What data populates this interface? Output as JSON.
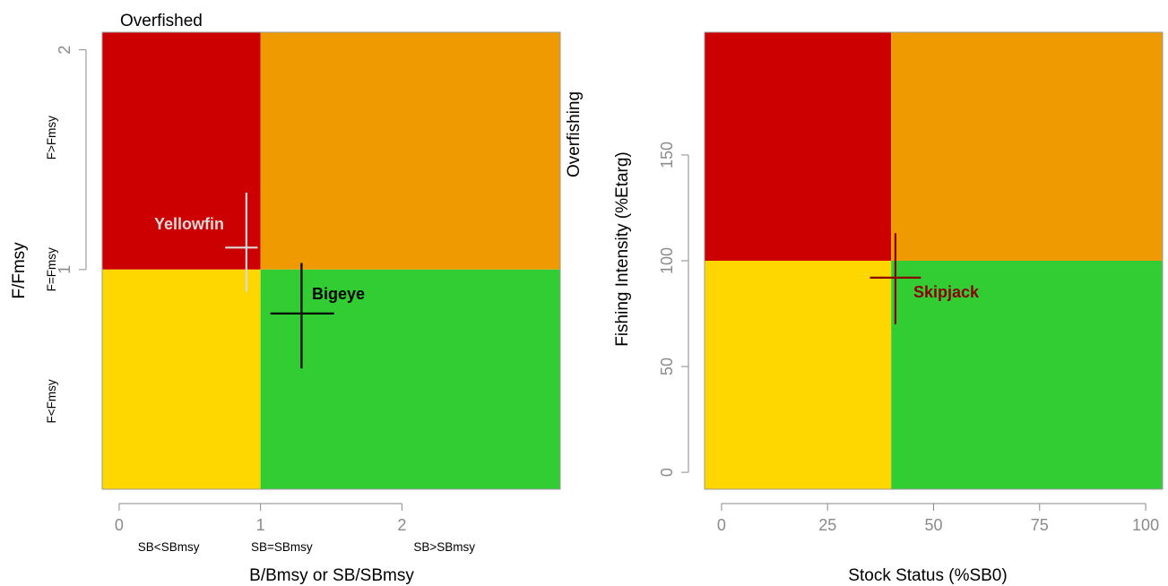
{
  "colors": {
    "red": "#CC0000",
    "orange": "#EE9A00",
    "yellow": "#FFD700",
    "green": "#32CD32",
    "axis": "#8a8a8a"
  },
  "chart_data": [
    {
      "type": "kobe-plot",
      "title": "Overfished",
      "xlabel": "B/Bmsy or SB/SBmsy",
      "ylabel": "F/Fmsy",
      "xlim": [
        -0.12,
        3.12
      ],
      "ylim": [
        0,
        2.08
      ],
      "x_ticks": [
        "0",
        "1",
        "2"
      ],
      "y_ticks": [
        "1",
        "2"
      ],
      "x_category_labels": [
        {
          "text": "SB<SBmsy",
          "x": 0.35
        },
        {
          "text": "SB=SBmsy",
          "x": 1.15
        },
        {
          "text": "SB>SBmsy",
          "x": 2.3
        }
      ],
      "y_category_labels": [
        {
          "text": "F>Fmsy",
          "y": 1.6
        },
        {
          "text": "F=Fmsy",
          "y": 1.0
        },
        {
          "text": "F<Fmsy",
          "y": 0.4
        }
      ],
      "reference": {
        "x": 1,
        "y": 1
      },
      "quadrants": {
        "upper_left": "red",
        "upper_right": "orange",
        "lower_left": "yellow",
        "lower_right": "green"
      },
      "series": [
        {
          "name": "Yellowfin",
          "color": "#D9D9D9",
          "x": 0.9,
          "x_low": 0.75,
          "x_high": 0.98,
          "y": 1.1,
          "y_low": 0.9,
          "y_high": 1.35
        },
        {
          "name": "Bigeye",
          "color": "#000000",
          "x": 1.29,
          "x_low": 1.07,
          "x_high": 1.52,
          "y": 0.8,
          "y_low": 0.55,
          "y_high": 1.03
        }
      ]
    },
    {
      "type": "kobe-plot",
      "title": "Overfishing",
      "xlabel": "Stock Status (%SB0)",
      "ylabel": "Fishing Intensity (%Etarg)",
      "xlim": [
        -4,
        104
      ],
      "ylim": [
        -8,
        208
      ],
      "x_ticks": [
        "0",
        "25",
        "50",
        "75",
        "100"
      ],
      "y_ticks": [
        "0",
        "50",
        "100",
        "150"
      ],
      "reference": {
        "x": 40,
        "y": 100
      },
      "quadrants": {
        "upper_left": "red",
        "upper_right": "orange",
        "lower_left": "yellow",
        "lower_right": "green"
      },
      "series": [
        {
          "name": "Skipjack",
          "color": "#8B0000",
          "x": 41,
          "x_low": 35,
          "x_high": 47,
          "y": 92,
          "y_low": 70,
          "y_high": 113
        }
      ]
    }
  ]
}
